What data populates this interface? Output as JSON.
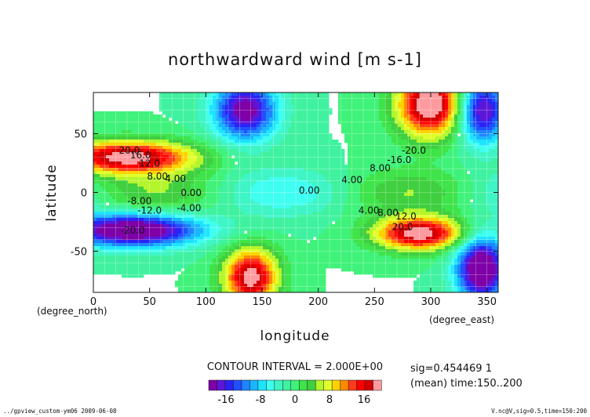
{
  "chart_data": {
    "type": "heatmap",
    "title": "northwardward wind [m s-1]",
    "xlabel": "longitude",
    "ylabel": "latitude",
    "x_unit": "(degree_east)",
    "y_unit": "(degree_north)",
    "xlim": [
      0,
      360
    ],
    "ylim": [
      -85,
      85
    ],
    "x_ticks": [
      0,
      50,
      100,
      150,
      200,
      250,
      300,
      350
    ],
    "y_ticks": [
      -50,
      0,
      50
    ],
    "contour_interval_text": "CONTOUR INTERVAL = 2.000E+00",
    "contour_labels": [
      {
        "text": "20.0",
        "lon": 32,
        "lat": 33
      },
      {
        "text": "16.0",
        "lon": 42,
        "lat": 29
      },
      {
        "text": "12.0",
        "lon": 50,
        "lat": 22
      },
      {
        "text": "8.00",
        "lon": 57,
        "lat": 11
      },
      {
        "text": "4.00",
        "lon": 73,
        "lat": 9
      },
      {
        "text": "0.00",
        "lon": 87,
        "lat": -3
      },
      {
        "text": "-8.00",
        "lon": 41,
        "lat": -10
      },
      {
        "text": "-12.0",
        "lon": 50,
        "lat": -18
      },
      {
        "text": "-4.00",
        "lon": 85,
        "lat": -16
      },
      {
        "text": "-20.0",
        "lon": 35,
        "lat": -35
      },
      {
        "text": "4.00",
        "lon": 230,
        "lat": 8
      },
      {
        "text": "8.00",
        "lon": 255,
        "lat": 18
      },
      {
        "text": "-16.0",
        "lon": 272,
        "lat": 25
      },
      {
        "text": "-20.0",
        "lon": 285,
        "lat": 33
      },
      {
        "text": "0.00",
        "lon": 192,
        "lat": -1
      },
      {
        "text": "4.00",
        "lon": 245,
        "lat": -18
      },
      {
        "text": "8.00",
        "lon": 262,
        "lat": -20
      },
      {
        "text": "12.0",
        "lon": 278,
        "lat": -23
      },
      {
        "text": "20.0",
        "lon": 275,
        "lat": -32
      }
    ],
    "colorbar": {
      "levels": [
        -20,
        -18,
        -16,
        -14,
        -12,
        -10,
        -8,
        -6,
        -4,
        -2,
        0,
        2,
        4,
        6,
        8,
        10,
        12,
        14,
        16,
        18,
        20
      ],
      "tick_values": [
        -16,
        -8,
        0,
        8,
        16
      ],
      "colors": [
        "#7e00a6",
        "#5c16d8",
        "#2b23f5",
        "#2050ff",
        "#1e84ff",
        "#19b6ff",
        "#1ee3ff",
        "#3ffff0",
        "#40f5c5",
        "#40f2a0",
        "#40f27a",
        "#3fe34a",
        "#3fcf3f",
        "#b4f52b",
        "#e1ff2b",
        "#ffd200",
        "#ff8a00",
        "#ff3b1e",
        "#ff0000",
        "#d40000",
        "#ff9ba0"
      ]
    },
    "annotation": "sig=0.454469 1\n(mean) time:150..200",
    "footer_left": "../gpview_custom-ym06  2009-06-08",
    "footer_right": "V.nc@V,sig=0.5,time=150:200"
  }
}
